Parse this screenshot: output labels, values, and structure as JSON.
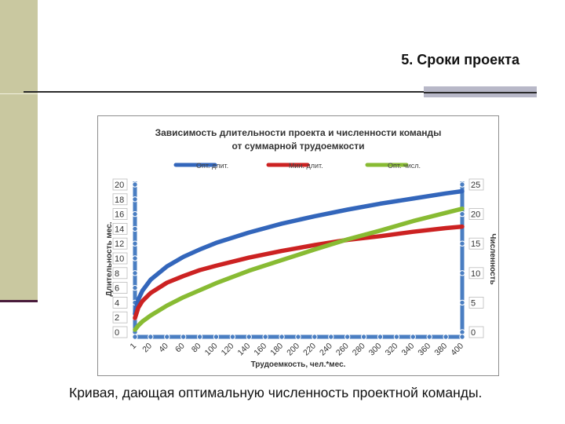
{
  "slide": {
    "title": "5. Сроки проекта",
    "caption": "Кривая, дающая оптимальную численность проектной команды."
  },
  "colors": {
    "opt_duration": "#3366bb",
    "min_duration": "#cc2222",
    "opt_headcount": "#88bb33",
    "axis": "#4a7ec2",
    "left_bar": "#c9c8a0"
  },
  "chart_data": {
    "type": "line",
    "title": "Зависимость длительности проекта и численности команды",
    "subtitle": "от суммарной трудоемкости",
    "xlabel": "Трудоемкость, чел.*мес.",
    "ylabel": "Длительность мес.",
    "y2label": "Численность",
    "x_ticks": [
      "1",
      "20",
      "40",
      "60",
      "80",
      "100",
      "120",
      "140",
      "160",
      "180",
      "200",
      "220",
      "240",
      "260",
      "280",
      "300",
      "320",
      "340",
      "360",
      "380",
      "400"
    ],
    "y_ticks": [
      "0",
      "2",
      "4",
      "6",
      "8",
      "10",
      "12",
      "14",
      "16",
      "18",
      "20"
    ],
    "y2_ticks": [
      "0",
      "5",
      "10",
      "15",
      "20",
      "25"
    ],
    "xlim": [
      1,
      400
    ],
    "ylim": [
      0,
      20
    ],
    "y2lim": [
      0,
      25
    ],
    "legend": "top",
    "grid": false,
    "series": [
      {
        "name": "Опт. длит.",
        "axis": "left",
        "color": "#3366bb",
        "x": [
          1,
          5,
          10,
          20,
          40,
          60,
          80,
          100,
          140,
          180,
          220,
          260,
          300,
          340,
          380,
          400
        ],
        "y": [
          2.5,
          4.4,
          5.6,
          7.1,
          8.9,
          10.2,
          11.2,
          12.1,
          13.5,
          14.7,
          15.7,
          16.6,
          17.4,
          18.1,
          18.8,
          19.1
        ]
      },
      {
        "name": "Мин. длит.",
        "axis": "left",
        "color": "#cc2222",
        "x": [
          1,
          5,
          10,
          20,
          40,
          60,
          80,
          100,
          140,
          180,
          220,
          260,
          300,
          340,
          380,
          400
        ],
        "y": [
          1.9,
          3.3,
          4.2,
          5.3,
          6.7,
          7.6,
          8.4,
          9.0,
          10.1,
          11.0,
          11.8,
          12.5,
          13.0,
          13.6,
          14.1,
          14.3
        ]
      },
      {
        "name": "Опт. числ.",
        "axis": "right",
        "color": "#88bb33",
        "x": [
          1,
          5,
          10,
          20,
          40,
          60,
          80,
          100,
          140,
          180,
          220,
          260,
          300,
          340,
          380,
          400
        ],
        "y": [
          0.4,
          1.1,
          1.8,
          2.8,
          4.5,
          5.9,
          7.1,
          8.3,
          10.4,
          12.2,
          14.0,
          15.7,
          17.2,
          18.8,
          20.2,
          20.9
        ]
      }
    ]
  }
}
